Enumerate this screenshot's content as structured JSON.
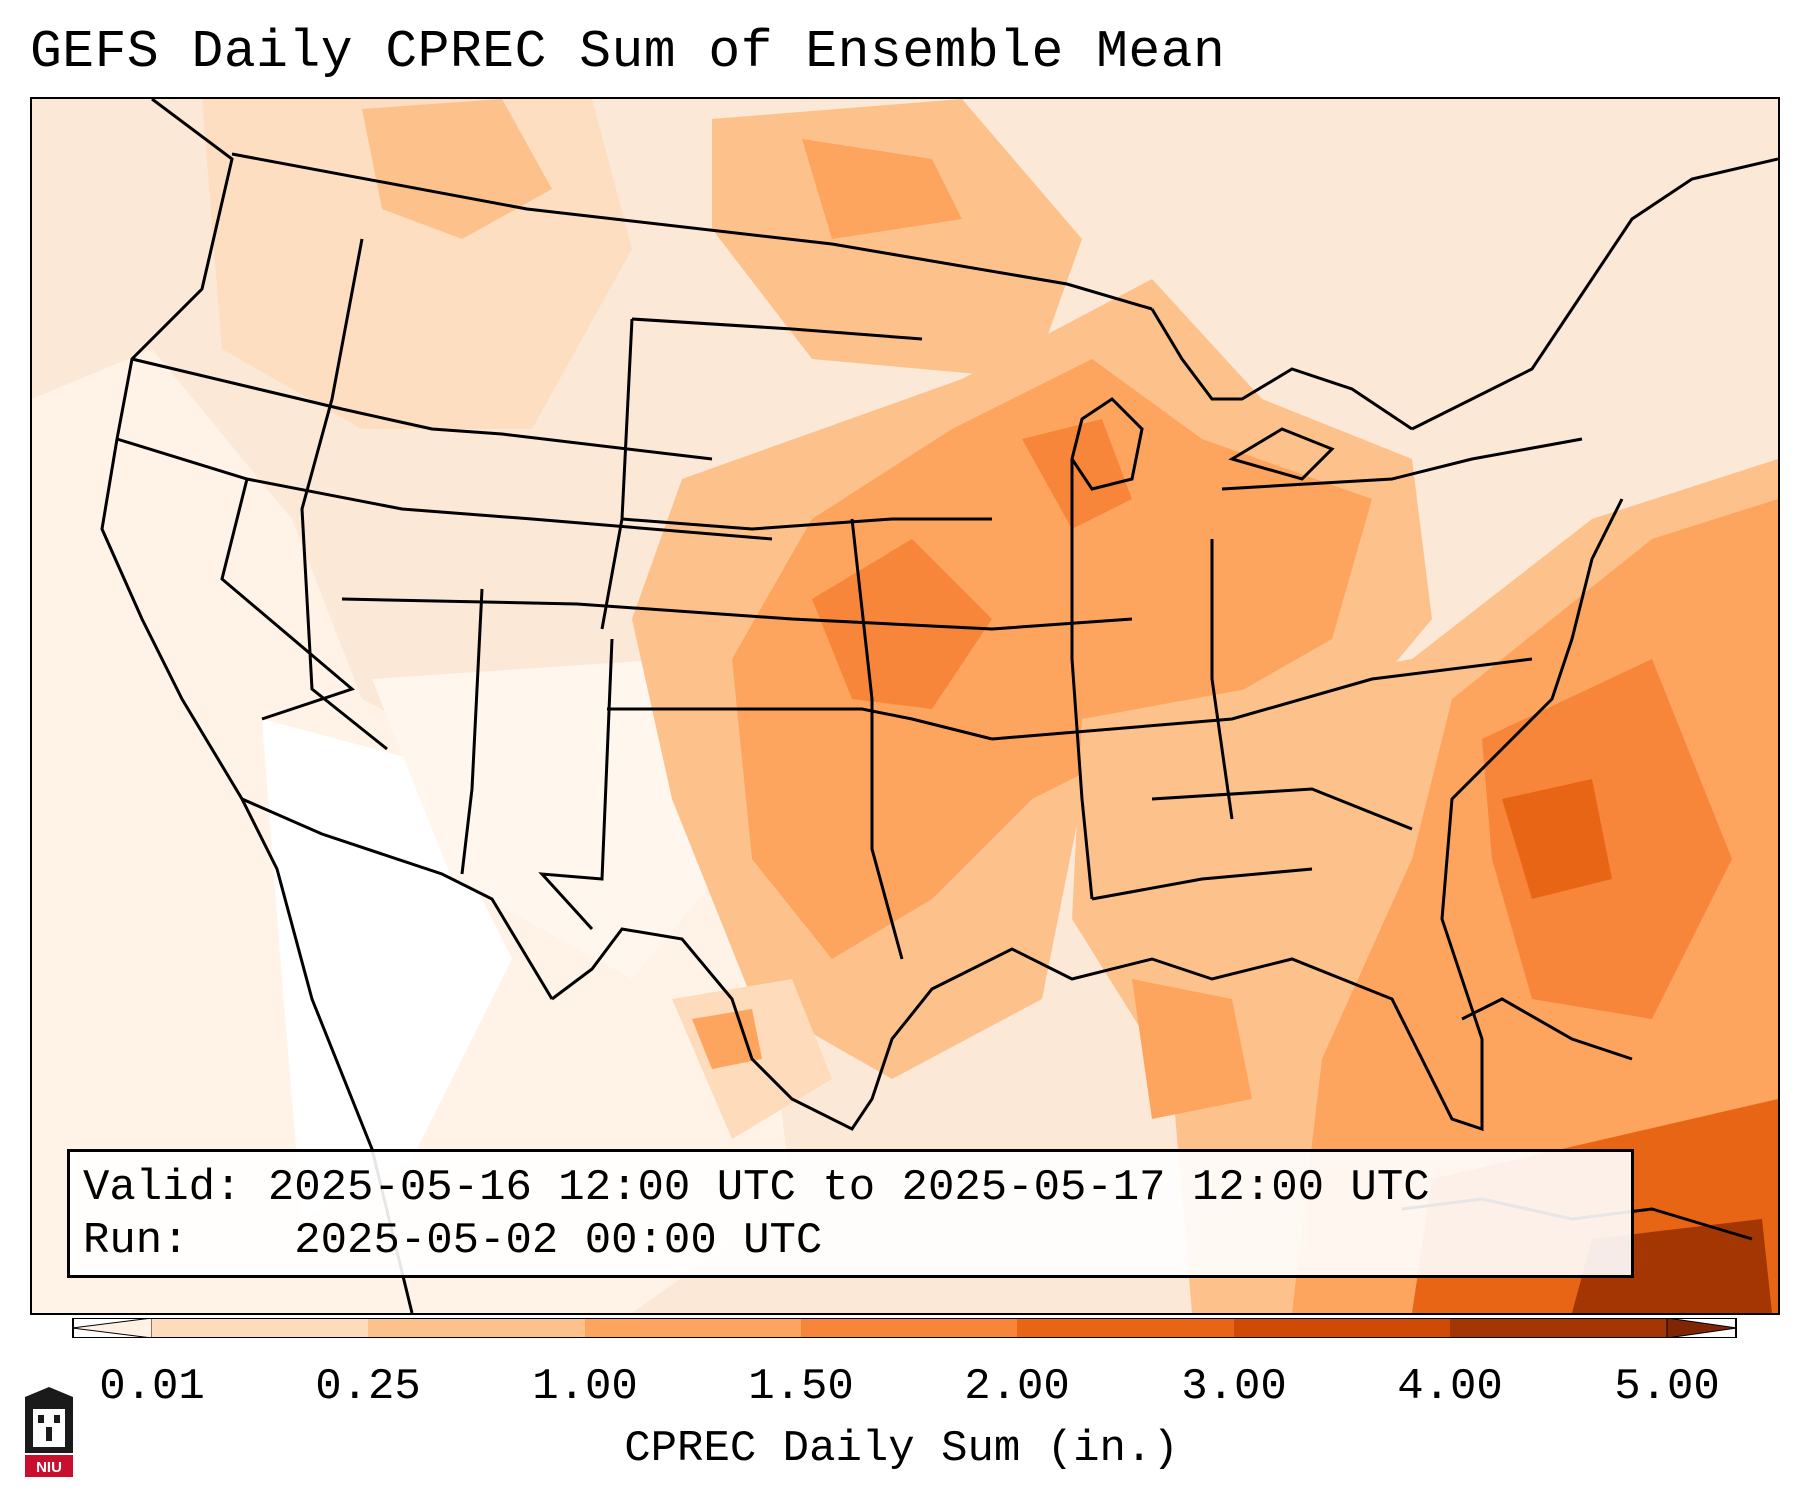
{
  "title": "GEFS Daily CPREC Sum of Ensemble Mean",
  "info": {
    "valid_label": "Valid:",
    "valid_value": "2025-05-16 12:00 UTC to 2025-05-17 12:00 UTC",
    "run_label": "Run:",
    "run_value": "2025-05-02 00:00 UTC"
  },
  "colorbar": {
    "title": "CPREC Daily Sum (in.)",
    "ticks": [
      "0.01",
      "0.25",
      "1.00",
      "1.50",
      "2.00",
      "3.00",
      "4.00",
      "5.00"
    ],
    "colors": [
      "#fff1e3",
      "#fddbbb",
      "#fdc28b",
      "#fda45f",
      "#f8863a",
      "#e86516",
      "#cf4a04",
      "#a33603",
      "#7f2704"
    ]
  },
  "logo": {
    "text": "NIU"
  }
}
